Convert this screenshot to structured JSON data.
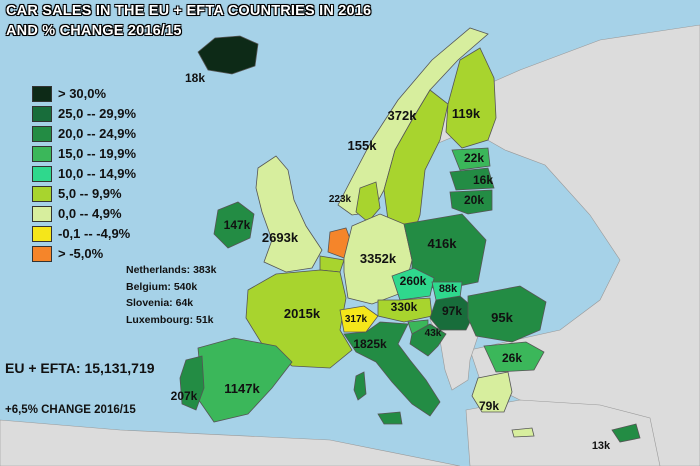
{
  "title": {
    "line1": "CAR SALES IN THE EU + EFTA COUNTRIES IN 2016",
    "line2": "AND % CHANGE 2016/15"
  },
  "legend": [
    {
      "label": "> 30,0%",
      "color": "#0d2a17"
    },
    {
      "label": "25,0 -- 29,9%",
      "color": "#186d3b"
    },
    {
      "label": "20,0 -- 24,9%",
      "color": "#238c44"
    },
    {
      "label": "15,0 -- 19,9%",
      "color": "#3bb75a"
    },
    {
      "label": "10,0 -- 14,9%",
      "color": "#2fd88d"
    },
    {
      "label": "5,0 -- 9,9%",
      "color": "#a8d42e"
    },
    {
      "label": "0,0 -- 4,9%",
      "color": "#d7ee9e"
    },
    {
      "label": "-0,1 -- -4,9%",
      "color": "#f5e61a"
    },
    {
      "label": "> -5,0%",
      "color": "#f5852a"
    }
  ],
  "small_countries": [
    "Netherlands: 383k",
    "Belgium: 540k",
    "Slovenia: 64k",
    "Luxembourg: 51k"
  ],
  "summary": {
    "total": "EU + EFTA: 15,131,719",
    "change": "+6,5% CHANGE 2016/15"
  },
  "colors": {
    "sea": "#a6d2e8",
    "non_member_land": "#dcdcdc",
    "border": "#555555"
  },
  "regions": [
    {
      "name": "Iceland",
      "label": "18k",
      "color": "#0d2a17"
    },
    {
      "name": "Norway",
      "label": "155k",
      "color": "#d7ee9e"
    },
    {
      "name": "Sweden",
      "label": "372k",
      "color": "#a8d42e"
    },
    {
      "name": "Finland",
      "label": "119k",
      "color": "#a8d42e"
    },
    {
      "name": "Estonia",
      "label": "22k",
      "color": "#3bb75a"
    },
    {
      "name": "Latvia",
      "label": "16k",
      "color": "#238c44"
    },
    {
      "name": "Lithuania",
      "label": "20k",
      "color": "#238c44"
    },
    {
      "name": "Denmark",
      "label": "223k",
      "color": "#a8d42e"
    },
    {
      "name": "Ireland",
      "label": "147k",
      "color": "#238c44"
    },
    {
      "name": "United Kingdom",
      "label": "2693k",
      "color": "#d7ee9e"
    },
    {
      "name": "Netherlands",
      "label": "",
      "color": "#f5852a"
    },
    {
      "name": "Belgium",
      "label": "",
      "color": "#a8d42e"
    },
    {
      "name": "Germany",
      "label": "3352k",
      "color": "#d7ee9e"
    },
    {
      "name": "Poland",
      "label": "416k",
      "color": "#238c44"
    },
    {
      "name": "France",
      "label": "2015k",
      "color": "#a8d42e"
    },
    {
      "name": "Czech Republic",
      "label": "260k",
      "color": "#2fd88d"
    },
    {
      "name": "Slovakia",
      "label": "88k",
      "color": "#2fd88d"
    },
    {
      "name": "Austria",
      "label": "330k",
      "color": "#a8d42e"
    },
    {
      "name": "Switzerland",
      "label": "317k",
      "color": "#f5e61a"
    },
    {
      "name": "Hungary",
      "label": "97k",
      "color": "#186d3b"
    },
    {
      "name": "Slovenia",
      "label": "",
      "color": "#3bb75a"
    },
    {
      "name": "Croatia",
      "label": "43k",
      "color": "#238c44"
    },
    {
      "name": "Romania",
      "label": "95k",
      "color": "#238c44"
    },
    {
      "name": "Bulgaria",
      "label": "26k",
      "color": "#3bb75a"
    },
    {
      "name": "Italy",
      "label": "1825k",
      "color": "#238c44"
    },
    {
      "name": "Spain",
      "label": "1147k",
      "color": "#3bb75a"
    },
    {
      "name": "Portugal",
      "label": "207k",
      "color": "#238c44"
    },
    {
      "name": "Greece",
      "label": "79k",
      "color": "#d7ee9e"
    },
    {
      "name": "Cyprus",
      "label": "13k",
      "color": "#238c44"
    }
  ]
}
